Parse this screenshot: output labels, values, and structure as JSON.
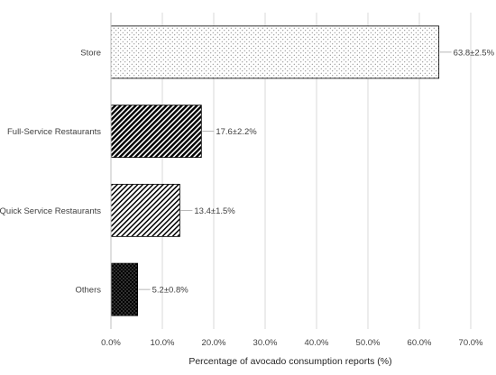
{
  "chart_data": {
    "type": "bar",
    "orientation": "horizontal",
    "categories": [
      "Store",
      "Full-Service Restaurants",
      "Quick Service Restaurants",
      "Others"
    ],
    "values": [
      63.8,
      17.6,
      13.4,
      5.2
    ],
    "errors": [
      2.5,
      2.2,
      1.5,
      0.8
    ],
    "data_labels": [
      "63.8±2.5%",
      "17.6±2.2%",
      "13.4±1.5%",
      "5.2±0.8%"
    ],
    "patterns": [
      "dots-light",
      "diagonal-dense",
      "diagonal-sparse",
      "dots-dark"
    ],
    "xlabel": "Percentage of avocado consumption reports (%)",
    "ylabel": "",
    "xlim": [
      0,
      70
    ],
    "xticks": [
      0,
      10,
      20,
      30,
      40,
      50,
      60,
      70
    ],
    "xtick_labels": [
      "0.0%",
      "10.0%",
      "20.0%",
      "30.0%",
      "40.0%",
      "50.0%",
      "60.0%",
      "70.0%"
    ],
    "grid": "vertical",
    "colors": {
      "grid": "#d9d9d9",
      "bar_edge": "#000000",
      "text": "#404040"
    }
  }
}
